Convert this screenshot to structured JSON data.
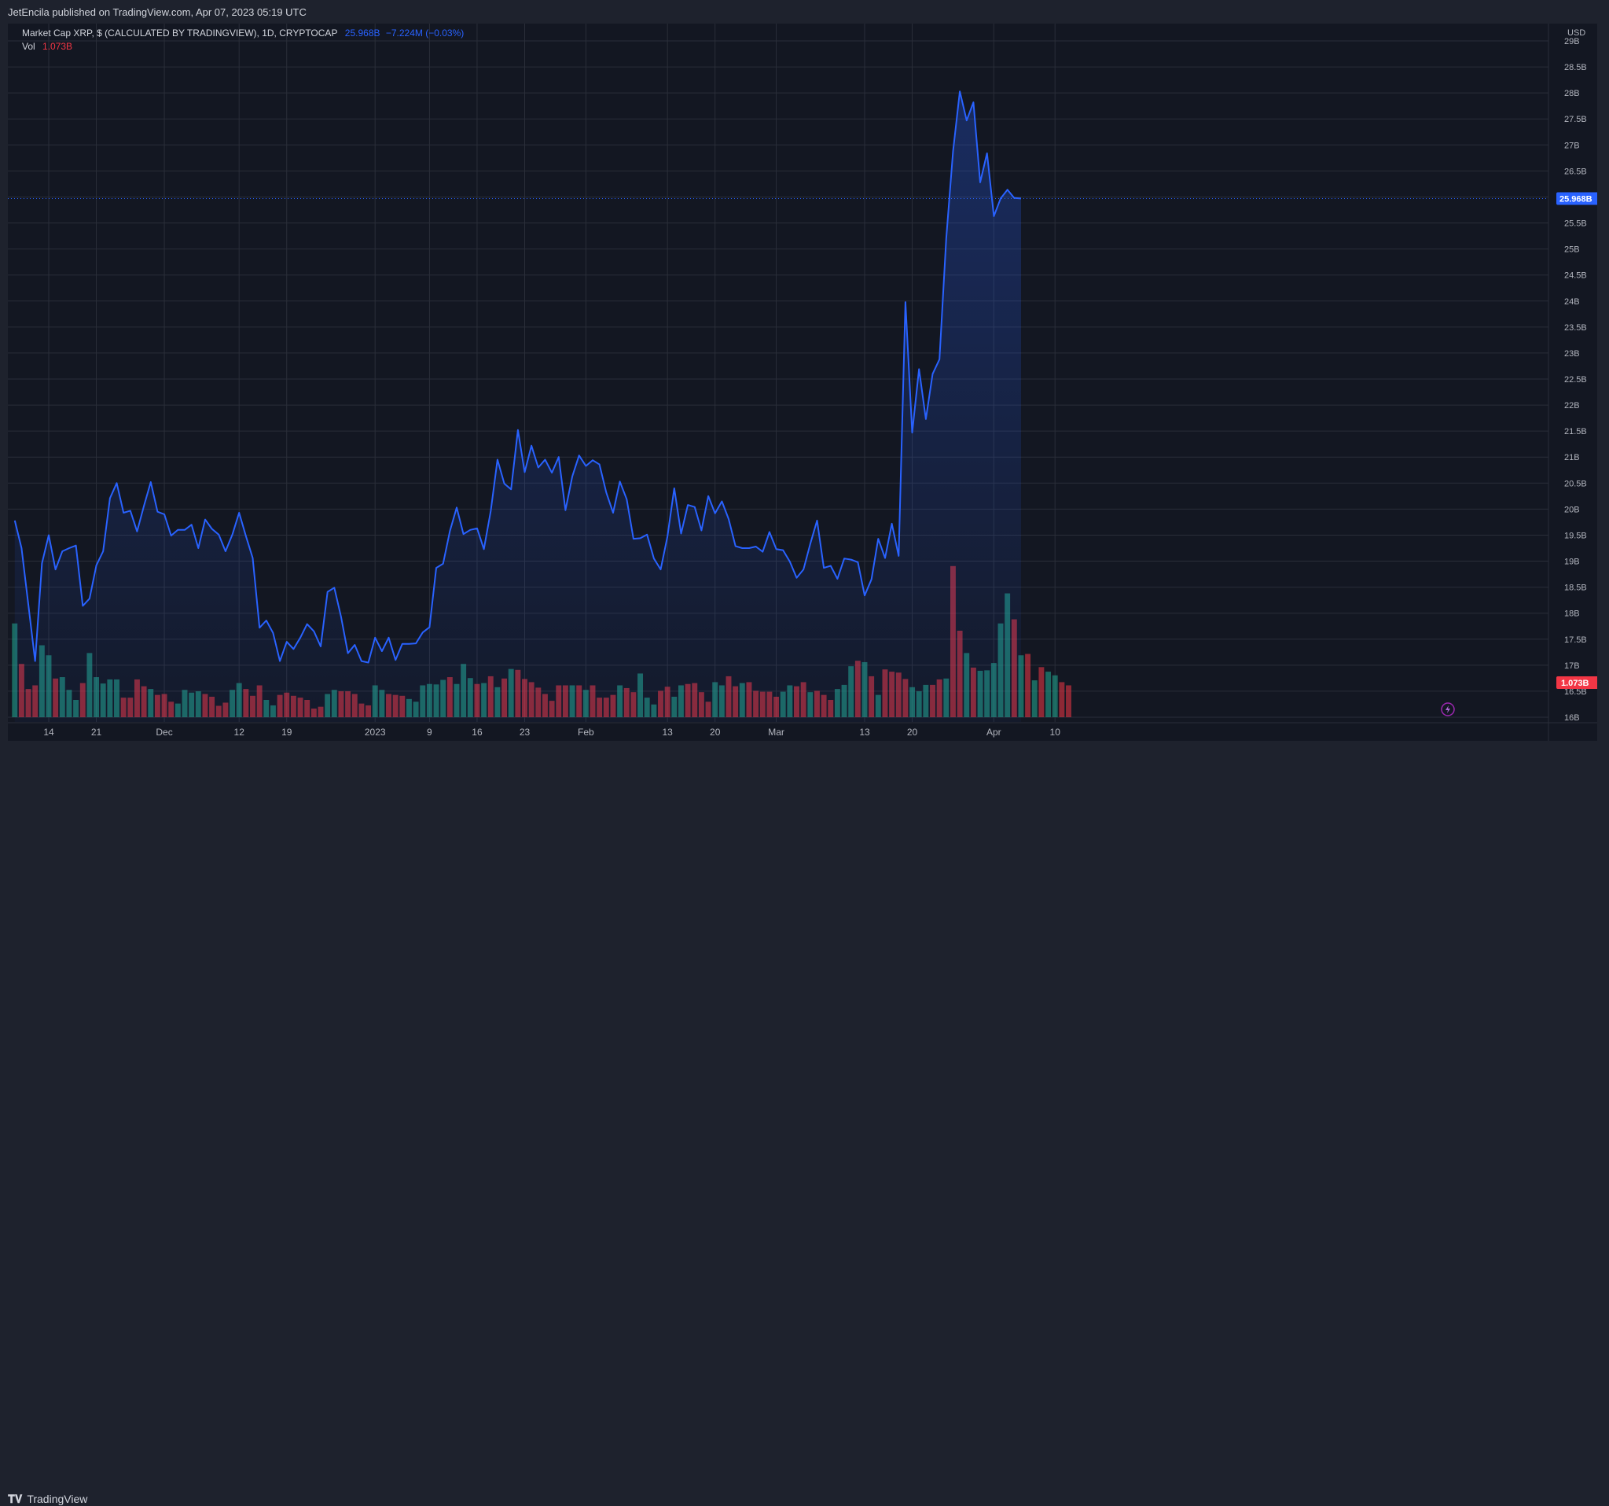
{
  "header": {
    "publisher_text": "JetEncila published on TradingView.com, Apr 07, 2023 05:19 UTC"
  },
  "legend": {
    "symbol": "Market Cap XRP, $ (CALCULATED BY TRADINGVIEW), 1D, CRYPTOCAP",
    "last_value": "25.968B",
    "change": "−7.224M (−0.03%)",
    "vol_label": "Vol",
    "vol_value": "1.073B"
  },
  "footer": {
    "brand": "TradingView"
  },
  "colors": {
    "line": "#2962ff",
    "up_bar": "#22ab94",
    "down_bar": "#f23645",
    "axis_text": "#b2b5be",
    "grid": "#2a2e39",
    "background": "#131722"
  },
  "chart_data": {
    "type": "line",
    "currency_label": "USD",
    "price_axis_labels": [
      "29B",
      "28.5B",
      "28B",
      "27.5B",
      "27B",
      "26.5B",
      "25.5B",
      "25B",
      "24.5B",
      "24B",
      "23.5B",
      "23B",
      "22.5B",
      "22B",
      "21.5B",
      "21B",
      "20.5B",
      "20B",
      "19.5B",
      "19B",
      "18.5B",
      "18B",
      "17.5B",
      "17B",
      "16.5B",
      "16B"
    ],
    "ylim": [
      16.0,
      29.0
    ],
    "x_axis_labels": [
      "14",
      "21",
      "Dec",
      "12",
      "19",
      "2023",
      "9",
      "16",
      "23",
      "Feb",
      "13",
      "20",
      "Mar",
      "13",
      "20",
      "Apr",
      "10"
    ],
    "x_axis_label_days": [
      0,
      7,
      17,
      28,
      35,
      48,
      56,
      63,
      70,
      79,
      91,
      98,
      107,
      120,
      127,
      139,
      148
    ],
    "last_price_label": "25.968B",
    "last_volume_label": "1.073B",
    "series": [
      {
        "values": [
          19.78,
          19.25,
          18.17,
          17.08,
          18.96,
          19.5,
          18.84,
          19.19,
          19.25,
          19.3,
          18.14,
          18.28,
          18.92,
          19.19,
          20.21,
          20.5,
          19.93,
          19.97,
          19.57,
          20.06,
          20.52,
          19.95,
          19.9,
          19.49,
          19.6,
          19.6,
          19.7,
          19.25,
          19.8,
          19.62,
          19.51,
          19.19,
          19.51,
          19.93,
          19.48,
          19.06,
          17.72,
          17.86,
          17.62,
          17.08,
          17.45,
          17.31,
          17.53,
          17.79,
          17.65,
          17.36,
          18.41,
          18.49,
          17.93,
          17.23,
          17.39,
          17.08,
          17.05,
          17.53,
          17.27,
          17.53,
          17.1,
          17.41,
          17.41,
          17.42,
          17.63,
          17.73,
          18.87,
          18.95,
          19.58,
          20.03,
          19.52,
          19.6,
          19.63,
          19.23,
          19.96,
          20.95,
          20.49,
          20.38,
          21.52,
          20.71,
          21.22,
          20.8,
          20.95,
          20.7,
          21.0,
          19.98,
          20.63,
          21.03,
          20.83,
          20.94,
          20.86,
          20.32,
          19.93,
          20.53,
          20.19,
          19.43,
          19.44,
          19.51,
          19.05,
          18.84,
          19.47,
          20.4,
          19.53,
          20.08,
          20.04,
          19.59,
          20.25,
          19.92,
          20.15,
          19.81,
          19.29,
          19.25,
          19.25,
          19.28,
          19.18,
          19.56,
          19.23,
          19.21,
          18.99,
          18.68,
          18.84,
          19.33,
          19.78,
          18.87,
          18.91,
          18.66,
          19.05,
          19.03,
          18.98,
          18.34,
          18.65,
          19.43,
          19.06,
          19.72,
          19.1,
          23.98,
          21.47,
          22.69,
          21.73,
          22.6,
          22.88,
          25.2,
          26.88,
          28.03,
          27.47,
          27.82,
          26.28,
          26.84,
          25.63,
          25.97,
          26.14,
          25.98,
          25.97
        ]
      }
    ],
    "volume_bars": [
      {
        "v": 2.06,
        "up": true
      },
      {
        "v": 1.17,
        "up": false
      },
      {
        "v": 0.62,
        "up": false
      },
      {
        "v": 0.7,
        "up": false
      },
      {
        "v": 1.58,
        "up": true
      },
      {
        "v": 1.36,
        "up": true
      },
      {
        "v": 0.85,
        "up": false
      },
      {
        "v": 0.88,
        "up": true
      },
      {
        "v": 0.6,
        "up": true
      },
      {
        "v": 0.38,
        "up": true
      },
      {
        "v": 0.75,
        "up": false
      },
      {
        "v": 1.41,
        "up": true
      },
      {
        "v": 0.88,
        "up": true
      },
      {
        "v": 0.74,
        "up": true
      },
      {
        "v": 0.83,
        "up": true
      },
      {
        "v": 0.83,
        "up": true
      },
      {
        "v": 0.43,
        "up": false
      },
      {
        "v": 0.43,
        "up": false
      },
      {
        "v": 0.83,
        "up": false
      },
      {
        "v": 0.68,
        "up": false
      },
      {
        "v": 0.62,
        "up": true
      },
      {
        "v": 0.49,
        "up": false
      },
      {
        "v": 0.51,
        "up": false
      },
      {
        "v": 0.34,
        "up": false
      },
      {
        "v": 0.3,
        "up": true
      },
      {
        "v": 0.6,
        "up": true
      },
      {
        "v": 0.54,
        "up": true
      },
      {
        "v": 0.57,
        "up": true
      },
      {
        "v": 0.51,
        "up": false
      },
      {
        "v": 0.45,
        "up": false
      },
      {
        "v": 0.25,
        "up": false
      },
      {
        "v": 0.32,
        "up": false
      },
      {
        "v": 0.6,
        "up": true
      },
      {
        "v": 0.75,
        "up": true
      },
      {
        "v": 0.62,
        "up": false
      },
      {
        "v": 0.47,
        "up": false
      },
      {
        "v": 0.7,
        "up": false
      },
      {
        "v": 0.38,
        "up": true
      },
      {
        "v": 0.26,
        "up": true
      },
      {
        "v": 0.49,
        "up": false
      },
      {
        "v": 0.54,
        "up": false
      },
      {
        "v": 0.47,
        "up": false
      },
      {
        "v": 0.43,
        "up": false
      },
      {
        "v": 0.38,
        "up": false
      },
      {
        "v": 0.19,
        "up": false
      },
      {
        "v": 0.23,
        "up": false
      },
      {
        "v": 0.51,
        "up": true
      },
      {
        "v": 0.6,
        "up": true
      },
      {
        "v": 0.57,
        "up": false
      },
      {
        "v": 0.57,
        "up": false
      },
      {
        "v": 0.51,
        "up": false
      },
      {
        "v": 0.3,
        "up": false
      },
      {
        "v": 0.26,
        "up": false
      },
      {
        "v": 0.7,
        "up": true
      },
      {
        "v": 0.6,
        "up": true
      },
      {
        "v": 0.51,
        "up": false
      },
      {
        "v": 0.49,
        "up": false
      },
      {
        "v": 0.47,
        "up": false
      },
      {
        "v": 0.4,
        "up": true
      },
      {
        "v": 0.34,
        "up": true
      },
      {
        "v": 0.7,
        "up": true
      },
      {
        "v": 0.73,
        "up": true
      },
      {
        "v": 0.72,
        "up": true
      },
      {
        "v": 0.82,
        "up": true
      },
      {
        "v": 0.88,
        "up": false
      },
      {
        "v": 0.73,
        "up": true
      },
      {
        "v": 1.17,
        "up": true
      },
      {
        "v": 0.86,
        "up": true
      },
      {
        "v": 0.73,
        "up": false
      },
      {
        "v": 0.75,
        "up": true
      },
      {
        "v": 0.9,
        "up": false
      },
      {
        "v": 0.66,
        "up": true
      },
      {
        "v": 0.85,
        "up": false
      },
      {
        "v": 1.06,
        "up": true
      },
      {
        "v": 1.04,
        "up": false
      },
      {
        "v": 0.84,
        "up": false
      },
      {
        "v": 0.77,
        "up": false
      },
      {
        "v": 0.65,
        "up": false
      },
      {
        "v": 0.51,
        "up": false
      },
      {
        "v": 0.36,
        "up": false
      },
      {
        "v": 0.7,
        "up": false
      },
      {
        "v": 0.7,
        "up": false
      },
      {
        "v": 0.7,
        "up": true
      },
      {
        "v": 0.7,
        "up": false
      },
      {
        "v": 0.6,
        "up": true
      },
      {
        "v": 0.7,
        "up": false
      },
      {
        "v": 0.43,
        "up": false
      },
      {
        "v": 0.43,
        "up": false
      },
      {
        "v": 0.49,
        "up": false
      },
      {
        "v": 0.7,
        "up": true
      },
      {
        "v": 0.64,
        "up": false
      },
      {
        "v": 0.55,
        "up": false
      },
      {
        "v": 0.96,
        "up": true
      },
      {
        "v": 0.43,
        "up": true
      },
      {
        "v": 0.28,
        "up": true
      },
      {
        "v": 0.58,
        "up": false
      },
      {
        "v": 0.67,
        "up": false
      },
      {
        "v": 0.45,
        "up": true
      },
      {
        "v": 0.7,
        "up": true
      },
      {
        "v": 0.73,
        "up": false
      },
      {
        "v": 0.75,
        "up": false
      },
      {
        "v": 0.55,
        "up": false
      },
      {
        "v": 0.34,
        "up": false
      },
      {
        "v": 0.77,
        "up": true
      },
      {
        "v": 0.7,
        "up": true
      },
      {
        "v": 0.9,
        "up": false
      },
      {
        "v": 0.68,
        "up": false
      },
      {
        "v": 0.75,
        "up": true
      },
      {
        "v": 0.77,
        "up": false
      },
      {
        "v": 0.58,
        "up": false
      },
      {
        "v": 0.56,
        "up": false
      },
      {
        "v": 0.56,
        "up": false
      },
      {
        "v": 0.45,
        "up": false
      },
      {
        "v": 0.56,
        "up": true
      },
      {
        "v": 0.7,
        "up": true
      },
      {
        "v": 0.68,
        "up": false
      },
      {
        "v": 0.77,
        "up": false
      },
      {
        "v": 0.55,
        "up": true
      },
      {
        "v": 0.58,
        "up": false
      },
      {
        "v": 0.49,
        "up": false
      },
      {
        "v": 0.38,
        "up": false
      },
      {
        "v": 0.62,
        "up": true
      },
      {
        "v": 0.71,
        "up": true
      },
      {
        "v": 1.12,
        "up": true
      },
      {
        "v": 1.24,
        "up": false
      },
      {
        "v": 1.21,
        "up": true
      },
      {
        "v": 0.9,
        "up": false
      },
      {
        "v": 0.49,
        "up": true
      },
      {
        "v": 1.05,
        "up": false
      },
      {
        "v": 1.0,
        "up": false
      },
      {
        "v": 0.98,
        "up": false
      },
      {
        "v": 0.84,
        "up": false
      },
      {
        "v": 0.66,
        "up": true
      },
      {
        "v": 0.57,
        "up": true
      },
      {
        "v": 0.71,
        "up": true
      },
      {
        "v": 0.71,
        "up": false
      },
      {
        "v": 0.83,
        "up": false
      },
      {
        "v": 0.85,
        "up": true
      },
      {
        "v": 3.32,
        "up": false
      },
      {
        "v": 1.9,
        "up": false
      },
      {
        "v": 1.41,
        "up": true
      },
      {
        "v": 1.09,
        "up": false
      },
      {
        "v": 1.02,
        "up": true
      },
      {
        "v": 1.03,
        "up": true
      },
      {
        "v": 1.19,
        "up": true
      },
      {
        "v": 2.06,
        "up": true
      },
      {
        "v": 2.72,
        "up": true
      },
      {
        "v": 2.15,
        "up": false
      },
      {
        "v": 1.36,
        "up": true
      },
      {
        "v": 1.39,
        "up": false
      },
      {
        "v": 0.81,
        "up": true
      },
      {
        "v": 1.1,
        "up": false
      },
      {
        "v": 1.0,
        "up": true
      },
      {
        "v": 0.92,
        "up": true
      },
      {
        "v": 0.77,
        "up": false
      },
      {
        "v": 0.7,
        "up": false
      }
    ]
  }
}
